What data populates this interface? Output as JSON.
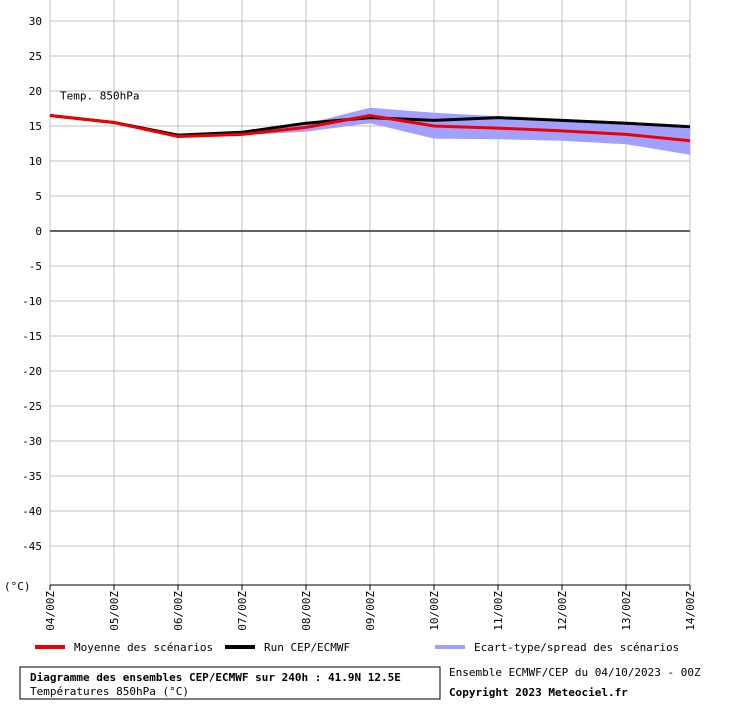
{
  "chart_data": {
    "type": "line",
    "title": "Diagramme des ensembles CEP/ECMWF sur 240h : 41.9N 12.5E",
    "subtitle": "Températures 850hPa (°C)",
    "annotation": "Temp. 850hPa",
    "y_label": "(°C)",
    "run_info": "Ensemble ECMWF/CEP du 04/10/2023 - 00Z",
    "copyright": "Copyright 2023 Meteociel.fr",
    "categories": [
      "04/00Z",
      "05/00Z",
      "06/00Z",
      "07/00Z",
      "08/00Z",
      "09/00Z",
      "10/00Z",
      "11/00Z",
      "12/00Z",
      "13/00Z",
      "14/00Z"
    ],
    "series": [
      {
        "name": "Moyenne des scénarios",
        "color": "#ee0000",
        "values": [
          16.5,
          15.5,
          13.5,
          13.8,
          14.8,
          16.5,
          15,
          14.7,
          14.3,
          13.8,
          12.9
        ]
      },
      {
        "name": "Run CEP/ECMWF",
        "color": "#000000",
        "values": [
          16.5,
          15.5,
          13.7,
          14.1,
          15.4,
          16.2,
          15.8,
          16.2,
          15.8,
          15.4,
          14.9
        ]
      },
      {
        "name": "Ecart-type/spread des scénarios",
        "color": "#a0a0ff",
        "values": [
          16.5,
          15.5,
          13.8,
          14.3,
          15.3,
          17.6,
          16.9,
          16.4,
          16,
          15.6,
          15.1
        ],
        "lower": [
          16.5,
          15.5,
          13.4,
          13.7,
          14.2,
          15.4,
          13.2,
          13.1,
          12.9,
          12.4,
          10.9
        ]
      }
    ],
    "ylim": [
      -50,
      30
    ],
    "yticks": [
      30,
      25,
      20,
      15,
      10,
      5,
      0,
      -5,
      -10,
      -15,
      -20,
      -25,
      -30,
      -35,
      -40,
      -45
    ],
    "grid": true
  }
}
